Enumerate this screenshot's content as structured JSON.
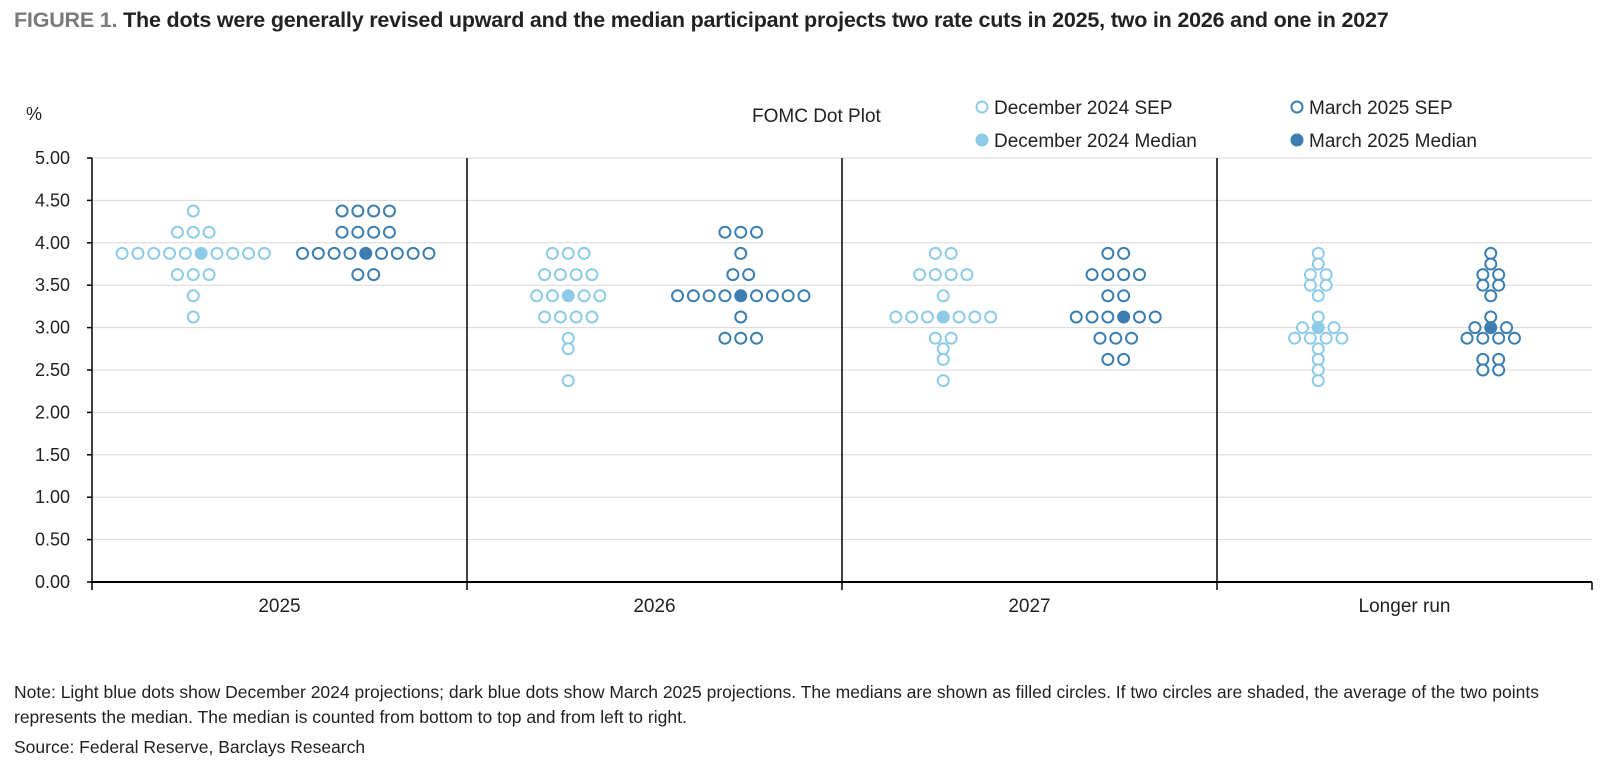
{
  "figure": {
    "label": "FIGURE 1.",
    "title": "The dots were generally revised upward and the median participant projects two rate cuts in 2025, two in 2026 and one in 2027"
  },
  "note": "Note: Light blue dots show December 2024 projections; dark blue dots show March 2025 projections. The medians are shown as filled circles. If two circles are shaded, the average of the two points represents the median. The median is counted from bottom to top and from left to right.",
  "source": "Source: Federal Reserve, Barclays Research",
  "colors": {
    "december": "#8ecbe8",
    "march": "#3c7eb0",
    "grid": "#d9d9d9",
    "axis": "#000000"
  },
  "chart_data": {
    "type": "scatter",
    "title": "FOMC Dot Plot",
    "ylabel": "%",
    "ylim": [
      0,
      5
    ],
    "ytick_step": 0.5,
    "yticks": [
      "0.00",
      "0.50",
      "1.00",
      "1.50",
      "2.00",
      "2.50",
      "3.00",
      "3.50",
      "4.00",
      "4.50",
      "5.00"
    ],
    "grid": true,
    "legend_position": "top-right",
    "categories": [
      "2025",
      "2026",
      "2027",
      "Longer run"
    ],
    "legend": [
      {
        "label": "December 2024 SEP",
        "series": "december",
        "filled": false
      },
      {
        "label": "March 2025 SEP",
        "series": "march",
        "filled": false
      },
      {
        "label": "December 2024 Median",
        "series": "december",
        "filled": true
      },
      {
        "label": "March 2025 Median",
        "series": "march",
        "filled": true
      }
    ],
    "series": [
      {
        "id": "december",
        "name": "December 2024 SEP",
        "groups": [
          {
            "category": "2025",
            "median": 3.875,
            "levels": [
              {
                "y": 4.375,
                "count": 1
              },
              {
                "y": 4.125,
                "count": 3
              },
              {
                "y": 3.875,
                "count": 10
              },
              {
                "y": 3.625,
                "count": 3
              },
              {
                "y": 3.375,
                "count": 1
              },
              {
                "y": 3.125,
                "count": 1
              }
            ]
          },
          {
            "category": "2026",
            "median": 3.375,
            "levels": [
              {
                "y": 3.875,
                "count": 3
              },
              {
                "y": 3.625,
                "count": 4
              },
              {
                "y": 3.375,
                "count": 5
              },
              {
                "y": 3.125,
                "count": 4
              },
              {
                "y": 2.875,
                "count": 1
              },
              {
                "y": 2.75,
                "count": 1
              },
              {
                "y": 2.375,
                "count": 1
              }
            ]
          },
          {
            "category": "2027",
            "median": 3.125,
            "levels": [
              {
                "y": 3.875,
                "count": 2
              },
              {
                "y": 3.625,
                "count": 4
              },
              {
                "y": 3.375,
                "count": 1
              },
              {
                "y": 3.125,
                "count": 7
              },
              {
                "y": 2.875,
                "count": 2
              },
              {
                "y": 2.75,
                "count": 1
              },
              {
                "y": 2.625,
                "count": 1
              },
              {
                "y": 2.375,
                "count": 1
              }
            ]
          },
          {
            "category": "Longer run",
            "median": 3.0,
            "levels": [
              {
                "y": 3.875,
                "count": 1
              },
              {
                "y": 3.75,
                "count": 1
              },
              {
                "y": 3.625,
                "count": 2
              },
              {
                "y": 3.5,
                "count": 2
              },
              {
                "y": 3.375,
                "count": 1
              },
              {
                "y": 3.125,
                "count": 1
              },
              {
                "y": 3.0,
                "count": 3
              },
              {
                "y": 2.875,
                "count": 4
              },
              {
                "y": 2.75,
                "count": 1
              },
              {
                "y": 2.625,
                "count": 1
              },
              {
                "y": 2.5,
                "count": 1
              },
              {
                "y": 2.375,
                "count": 1
              }
            ]
          }
        ]
      },
      {
        "id": "march",
        "name": "March 2025 SEP",
        "groups": [
          {
            "category": "2025",
            "median": 3.875,
            "levels": [
              {
                "y": 4.375,
                "count": 4
              },
              {
                "y": 4.125,
                "count": 4
              },
              {
                "y": 3.875,
                "count": 9
              },
              {
                "y": 3.625,
                "count": 2
              }
            ]
          },
          {
            "category": "2026",
            "median": 3.375,
            "levels": [
              {
                "y": 4.125,
                "count": 3
              },
              {
                "y": 3.875,
                "count": 1
              },
              {
                "y": 3.625,
                "count": 2
              },
              {
                "y": 3.375,
                "count": 9
              },
              {
                "y": 3.125,
                "count": 1
              },
              {
                "y": 2.875,
                "count": 3
              }
            ]
          },
          {
            "category": "2027",
            "median": 3.125,
            "levels": [
              {
                "y": 3.875,
                "count": 2
              },
              {
                "y": 3.625,
                "count": 4
              },
              {
                "y": 3.375,
                "count": 2
              },
              {
                "y": 3.125,
                "count": 6
              },
              {
                "y": 2.875,
                "count": 3
              },
              {
                "y": 2.625,
                "count": 2
              }
            ]
          },
          {
            "category": "Longer run",
            "median": 3.0,
            "levels": [
              {
                "y": 3.875,
                "count": 1
              },
              {
                "y": 3.75,
                "count": 1
              },
              {
                "y": 3.625,
                "count": 2
              },
              {
                "y": 3.5,
                "count": 2
              },
              {
                "y": 3.375,
                "count": 1
              },
              {
                "y": 3.125,
                "count": 1
              },
              {
                "y": 3.0,
                "count": 3
              },
              {
                "y": 2.875,
                "count": 4
              },
              {
                "y": 2.625,
                "count": 2
              },
              {
                "y": 2.5,
                "count": 2
              }
            ]
          }
        ]
      }
    ]
  }
}
